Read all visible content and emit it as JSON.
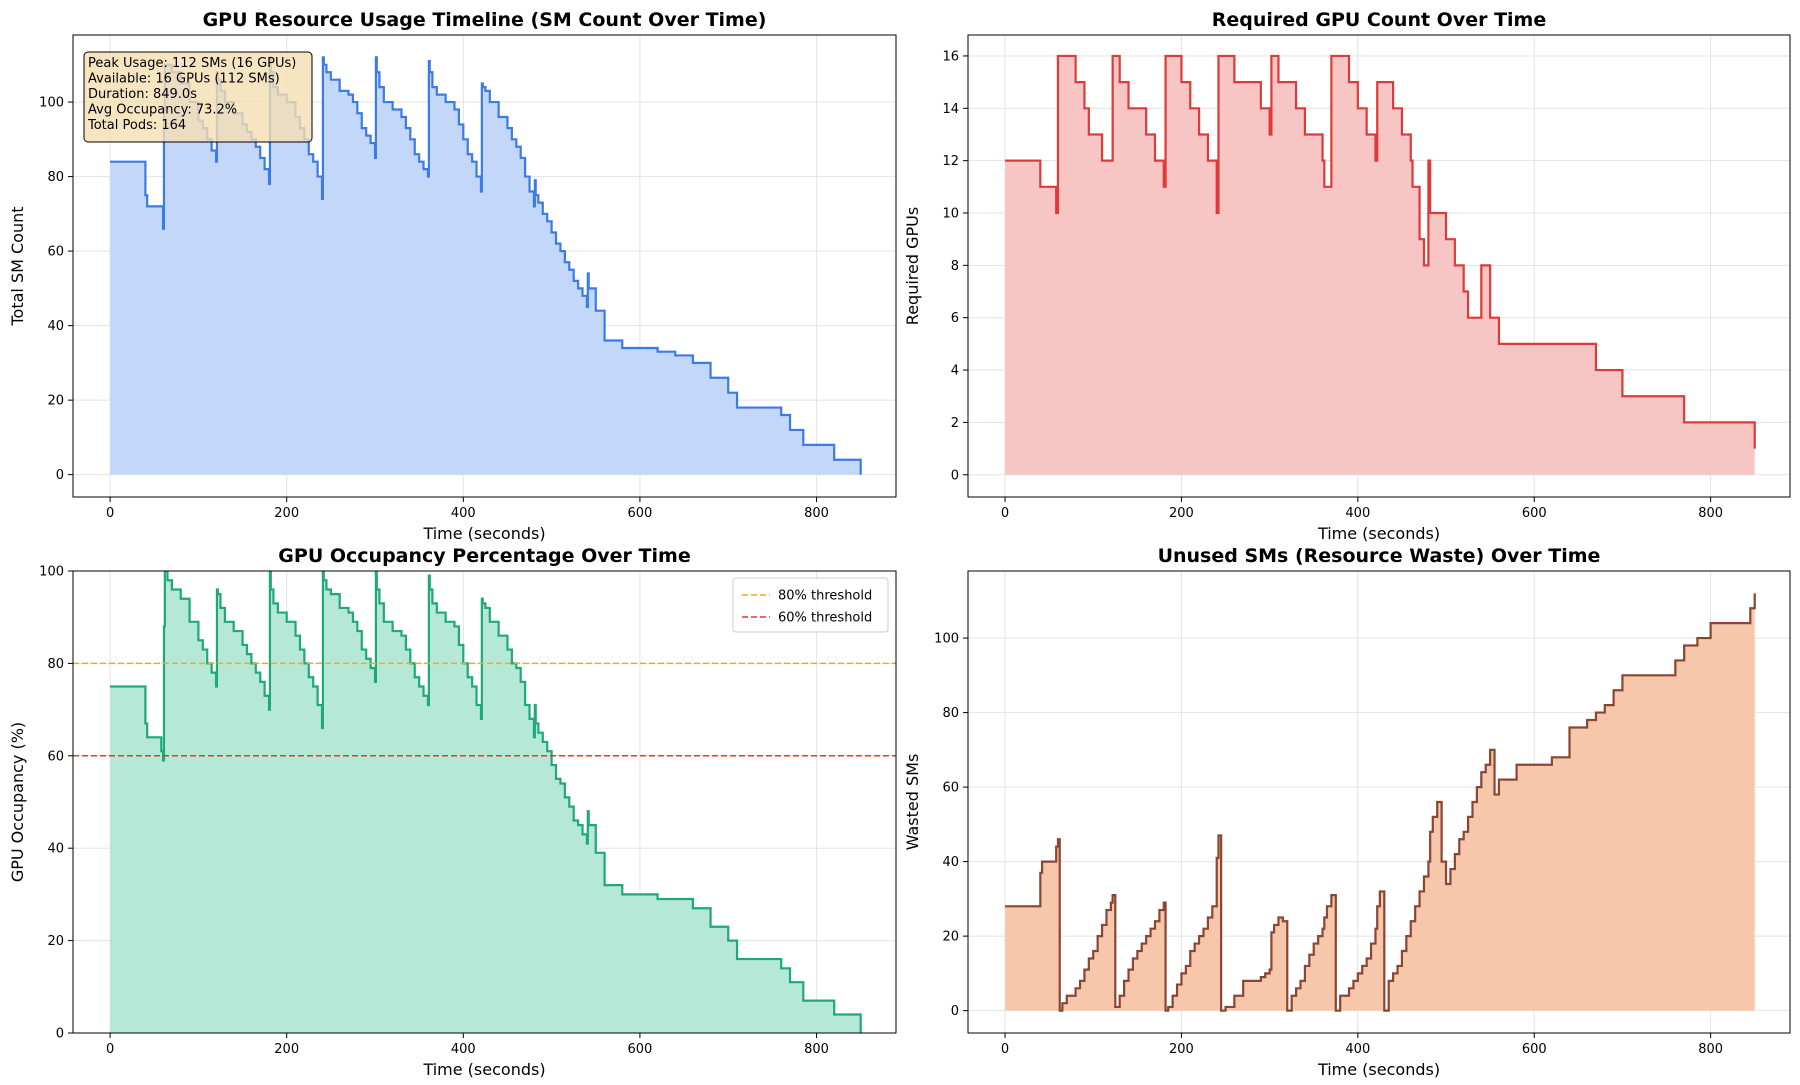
{
  "colors": {
    "sm_line": "#3b7be8",
    "sm_fill": "#c3d7f8",
    "gpu_line": "#dd3a3a",
    "gpu_fill": "#f8c5c5",
    "occ_line": "#1fa87a",
    "occ_fill": "#b5e8d6",
    "waste_line": "#8b4530",
    "waste_fill": "#f6c7aa",
    "threshold_80": "#f5a623",
    "threshold_60": "#e83535"
  },
  "chart_data": [
    {
      "id": "sm",
      "type": "area",
      "step": true,
      "title": "GPU Resource Usage Timeline (SM Count Over Time)",
      "xlabel": "Time (seconds)",
      "ylabel": "Total SM Count",
      "xlim": [
        -42,
        890
      ],
      "ylim": [
        -6,
        118
      ],
      "xticks": [
        0,
        200,
        400,
        600,
        800
      ],
      "yticks": [
        0,
        20,
        40,
        60,
        80,
        100
      ],
      "grid": true,
      "annotation": {
        "placement": "top-left",
        "lines": [
          "Peak Usage: 112 SMs (16 GPUs)",
          "Available: 16 GPUs (112 SMs)",
          "Duration: 849.0s",
          "Avg Occupancy: 73.2%",
          "Total Pods: 164"
        ]
      },
      "series": [
        {
          "x": [
            0,
            40,
            42,
            45,
            50,
            60,
            61,
            62,
            65,
            70,
            80,
            90,
            100,
            105,
            110,
            115,
            120,
            121,
            122,
            125,
            130,
            140,
            150,
            155,
            160,
            165,
            170,
            175,
            180,
            181,
            182,
            185,
            190,
            200,
            210,
            215,
            220,
            225,
            230,
            235,
            240,
            241,
            242,
            245,
            250,
            260,
            270,
            275,
            280,
            285,
            290,
            295,
            300,
            301,
            302,
            305,
            310,
            320,
            330,
            335,
            340,
            345,
            350,
            355,
            360,
            361,
            362,
            365,
            370,
            380,
            390,
            395,
            400,
            405,
            410,
            415,
            420,
            421,
            422,
            425,
            430,
            440,
            450,
            455,
            460,
            465,
            470,
            475,
            480,
            481,
            482,
            485,
            490,
            495,
            500,
            505,
            510,
            515,
            520,
            525,
            530,
            535,
            540,
            541,
            542,
            550,
            560,
            580,
            620,
            640,
            660,
            680,
            700,
            710,
            760,
            770,
            785,
            820,
            850
          ],
          "y": [
            84,
            75,
            72,
            72,
            72,
            66,
            98,
            110,
            110,
            108,
            105,
            100,
            95,
            93,
            90,
            87,
            84,
            108,
            106,
            103,
            100,
            97,
            94,
            92,
            90,
            88,
            85,
            82,
            78,
            112,
            108,
            104,
            102,
            100,
            96,
            93,
            90,
            86,
            84,
            80,
            74,
            112,
            110,
            108,
            106,
            103,
            102,
            100,
            97,
            93,
            91,
            89,
            85,
            112,
            108,
            104,
            100,
            98,
            96,
            93,
            90,
            86,
            84,
            82,
            80,
            111,
            108,
            104,
            102,
            100,
            98,
            94,
            90,
            86,
            84,
            80,
            76,
            105,
            104,
            103,
            100,
            96,
            93,
            90,
            88,
            85,
            80,
            76,
            72,
            79,
            75,
            73,
            70,
            68,
            65,
            62,
            60,
            57,
            55,
            52,
            50,
            48,
            45,
            54,
            50,
            44,
            36,
            34,
            33,
            32,
            30,
            26,
            22,
            18,
            16,
            12,
            8,
            4,
            0
          ]
        }
      ]
    },
    {
      "id": "gpu",
      "type": "area",
      "step": true,
      "title": "Required GPU Count Over Time",
      "xlabel": "Time (seconds)",
      "ylabel": "Required GPUs",
      "xlim": [
        -42,
        890
      ],
      "ylim": [
        -0.85,
        16.8
      ],
      "xticks": [
        0,
        200,
        400,
        600,
        800
      ],
      "yticks": [
        0,
        2,
        4,
        6,
        8,
        10,
        12,
        14,
        16
      ],
      "grid": true,
      "series": [
        {
          "x": [
            0,
            40,
            58,
            60,
            62,
            80,
            85,
            90,
            95,
            100,
            110,
            120,
            122,
            130,
            140,
            150,
            160,
            170,
            180,
            182,
            190,
            200,
            210,
            220,
            230,
            240,
            242,
            250,
            260,
            270,
            280,
            290,
            300,
            302,
            310,
            320,
            330,
            340,
            350,
            360,
            362,
            370,
            380,
            390,
            400,
            410,
            420,
            422,
            430,
            440,
            450,
            460,
            462,
            470,
            475,
            480,
            482,
            490,
            500,
            510,
            520,
            525,
            530,
            540,
            550,
            560,
            580,
            620,
            640,
            670,
            700,
            720,
            770,
            800,
            850
          ],
          "y": [
            12,
            11,
            10,
            16,
            16,
            15,
            15,
            14,
            13,
            13,
            12,
            12,
            16,
            15,
            14,
            14,
            13,
            12,
            11,
            16,
            16,
            15,
            14,
            13,
            12,
            10,
            16,
            16,
            15,
            15,
            15,
            14,
            13,
            16,
            15,
            15,
            14,
            13,
            13,
            12,
            11,
            16,
            16,
            15,
            14,
            13,
            12,
            15,
            15,
            14,
            13,
            12,
            11,
            9,
            8,
            12,
            10,
            10,
            9,
            8,
            7,
            6,
            6,
            8,
            6,
            5,
            5,
            5,
            5,
            4,
            3,
            3,
            2,
            2,
            1
          ]
        }
      ]
    },
    {
      "id": "occ",
      "type": "area",
      "step": true,
      "title": "GPU Occupancy Percentage Over Time",
      "xlabel": "Time (seconds)",
      "ylabel": "GPU Occupancy (%)",
      "xlim": [
        -42,
        890
      ],
      "ylim": [
        0,
        100
      ],
      "xticks": [
        0,
        200,
        400,
        600,
        800
      ],
      "yticks": [
        0,
        20,
        40,
        60,
        80,
        100
      ],
      "grid": true,
      "legend": "top-right",
      "thresholds": [
        {
          "value": 80,
          "label": "80% threshold"
        },
        {
          "value": 60,
          "label": "60% threshold"
        }
      ],
      "series": [
        {
          "x": [
            0,
            40,
            42,
            45,
            50,
            58,
            60,
            61,
            62,
            65,
            70,
            80,
            90,
            100,
            105,
            110,
            115,
            120,
            121,
            122,
            125,
            130,
            140,
            150,
            155,
            160,
            165,
            170,
            175,
            180,
            181,
            182,
            185,
            190,
            200,
            210,
            215,
            220,
            225,
            230,
            235,
            240,
            241,
            242,
            245,
            250,
            260,
            270,
            275,
            280,
            285,
            290,
            295,
            300,
            301,
            302,
            305,
            310,
            320,
            330,
            335,
            340,
            345,
            350,
            355,
            360,
            361,
            362,
            365,
            370,
            380,
            390,
            395,
            400,
            405,
            410,
            415,
            420,
            421,
            422,
            425,
            430,
            440,
            450,
            455,
            460,
            465,
            470,
            475,
            480,
            481,
            482,
            485,
            490,
            495,
            500,
            505,
            510,
            515,
            520,
            525,
            530,
            535,
            540,
            541,
            542,
            550,
            560,
            580,
            620,
            640,
            660,
            680,
            700,
            710,
            760,
            770,
            785,
            820,
            850
          ],
          "y": [
            75,
            67,
            64,
            64,
            64,
            61,
            59,
            88,
            100,
            98,
            96,
            94,
            89,
            85,
            83,
            80,
            78,
            75,
            96,
            95,
            92,
            89,
            87,
            84,
            82,
            80,
            78,
            76,
            73,
            70,
            100,
            96,
            93,
            91,
            89,
            86,
            83,
            80,
            77,
            75,
            71,
            66,
            100,
            98,
            96,
            95,
            92,
            91,
            89,
            87,
            83,
            81,
            79,
            76,
            100,
            96,
            93,
            89,
            87,
            86,
            83,
            80,
            77,
            75,
            73,
            71,
            99,
            96,
            93,
            91,
            89,
            88,
            84,
            80,
            77,
            75,
            71,
            68,
            94,
            93,
            92,
            89,
            86,
            83,
            80,
            79,
            76,
            71,
            68,
            64,
            71,
            67,
            65,
            63,
            61,
            58,
            55,
            54,
            51,
            49,
            46,
            45,
            43,
            41,
            48,
            45,
            39,
            32,
            30,
            29,
            29,
            27,
            23,
            20,
            16,
            14,
            11,
            7,
            4,
            0
          ]
        }
      ]
    },
    {
      "id": "waste",
      "type": "area",
      "step": true,
      "title": "Unused SMs (Resource Waste) Over Time",
      "xlabel": "Time (seconds)",
      "ylabel": "Wasted SMs",
      "xlim": [
        -42,
        890
      ],
      "ylim": [
        -6,
        118
      ],
      "xticks": [
        0,
        200,
        400,
        600,
        800
      ],
      "yticks": [
        0,
        20,
        40,
        60,
        80,
        100
      ],
      "grid": true,
      "series": [
        {
          "x": [
            0,
            40,
            42,
            45,
            50,
            58,
            60,
            62,
            65,
            70,
            75,
            80,
            85,
            90,
            95,
            100,
            105,
            110,
            115,
            120,
            122,
            125,
            130,
            135,
            140,
            145,
            150,
            155,
            160,
            165,
            170,
            175,
            180,
            182,
            185,
            190,
            195,
            200,
            205,
            210,
            215,
            220,
            225,
            230,
            235,
            240,
            242,
            245,
            250,
            260,
            270,
            275,
            280,
            285,
            290,
            295,
            300,
            302,
            305,
            310,
            315,
            320,
            325,
            330,
            335,
            340,
            345,
            350,
            355,
            360,
            362,
            365,
            370,
            375,
            380,
            390,
            395,
            400,
            405,
            410,
            415,
            420,
            422,
            425,
            430,
            435,
            440,
            445,
            450,
            455,
            460,
            465,
            470,
            475,
            480,
            482,
            485,
            490,
            495,
            500,
            505,
            510,
            515,
            520,
            525,
            530,
            535,
            540,
            545,
            550,
            555,
            560,
            580,
            620,
            640,
            660,
            670,
            680,
            690,
            700,
            760,
            770,
            785,
            800,
            845,
            850
          ],
          "y": [
            28,
            37,
            40,
            40,
            40,
            44,
            46,
            0,
            2,
            4,
            4,
            6,
            8,
            11,
            14,
            16,
            20,
            23,
            27,
            29,
            31,
            1,
            4,
            8,
            11,
            14,
            16,
            18,
            20,
            22,
            24,
            27,
            29,
            0,
            1,
            4,
            7,
            10,
            12,
            16,
            18,
            20,
            22,
            25,
            28,
            41,
            47,
            0,
            1,
            4,
            8,
            8,
            8,
            8,
            9,
            10,
            11,
            21,
            23,
            25,
            24,
            0,
            4,
            6,
            8,
            12,
            15,
            18,
            20,
            22,
            25,
            28,
            31,
            0,
            4,
            6,
            8,
            10,
            12,
            14,
            18,
            22,
            28,
            32,
            0,
            8,
            10,
            12,
            16,
            20,
            24,
            28,
            32,
            36,
            40,
            48,
            52,
            56,
            40,
            34,
            38,
            42,
            46,
            48,
            52,
            56,
            60,
            64,
            66,
            70,
            58,
            62,
            66,
            68,
            76,
            78,
            80,
            82,
            86,
            90,
            94,
            98,
            100,
            104,
            108,
            112
          ]
        }
      ]
    }
  ]
}
